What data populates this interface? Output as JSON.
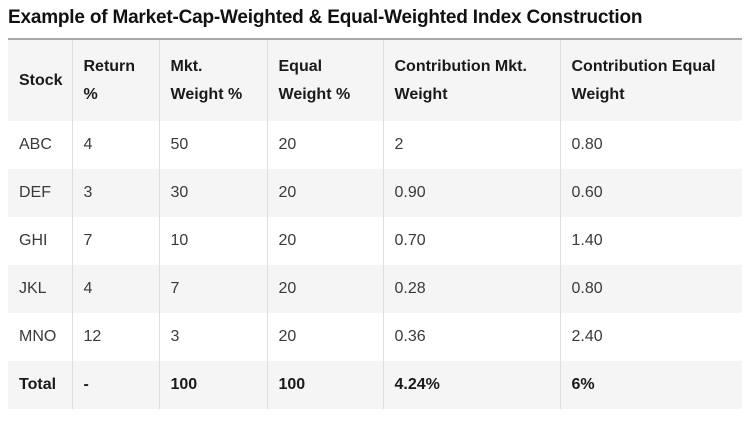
{
  "page": {
    "title": "Example of Market-Cap-Weighted & Equal-Weighted Index Construction"
  },
  "table": {
    "columns": [
      {
        "id": "stock",
        "label": "Stock"
      },
      {
        "id": "return-pct",
        "label": "Return\n%"
      },
      {
        "id": "mkt-weight-pct",
        "label": "Mkt.\nWeight %"
      },
      {
        "id": "equal-weight-pct",
        "label": "Equal\nWeight %"
      },
      {
        "id": "contribution-mkt-weight",
        "label": "Contribution Mkt.\nWeight"
      },
      {
        "id": "contribution-equal-weight",
        "label": "Contribution Equal\nWeight"
      }
    ],
    "rows": [
      {
        "is_total": false,
        "cells": [
          "ABC",
          "4",
          "50",
          "20",
          "2",
          "0.80"
        ]
      },
      {
        "is_total": false,
        "cells": [
          "DEF",
          "3",
          "30",
          "20",
          "0.90",
          "0.60"
        ]
      },
      {
        "is_total": false,
        "cells": [
          "GHI",
          "7",
          "10",
          "20",
          "0.70",
          "1.40"
        ]
      },
      {
        "is_total": false,
        "cells": [
          "JKL",
          "4",
          "7",
          "20",
          "0.28",
          "0.80"
        ]
      },
      {
        "is_total": false,
        "cells": [
          "MNO",
          "12",
          "3",
          "20",
          "0.36",
          "2.40"
        ]
      },
      {
        "is_total": true,
        "cells": [
          "Total",
          "-",
          "100",
          "100",
          "4.24%",
          "6%"
        ]
      }
    ]
  },
  "colors": {
    "title_text": "#111111",
    "header_text": "#1a1a1a",
    "body_text": "#3a3a3a",
    "stripe_bg": "#f5f5f5",
    "top_border": "#a8a8a8",
    "column_divider": "#dedede",
    "page_bg": "#ffffff"
  }
}
